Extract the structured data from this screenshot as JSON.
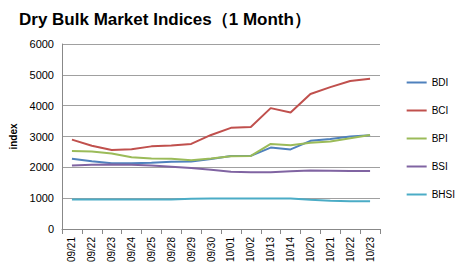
{
  "chart_data": {
    "type": "line",
    "title": "Dry Bulk Market Indices（1 Month）",
    "y_label": "index",
    "categories": [
      "09/21",
      "09/22",
      "09/23",
      "09/24",
      "09/25",
      "09/28",
      "09/29",
      "09/30",
      "10/01",
      "10/02",
      "10/13",
      "10/14",
      "10/20",
      "10/21",
      "10/22",
      "10/23"
    ],
    "series": [
      {
        "name": "BDI",
        "color": "#4f81bd",
        "values": [
          2280,
          2200,
          2130,
          2130,
          2150,
          2180,
          2190,
          2270,
          2370,
          2370,
          2640,
          2580,
          2860,
          2920,
          3000,
          3040
        ]
      },
      {
        "name": "BCI",
        "color": "#c0504d",
        "values": [
          2900,
          2700,
          2560,
          2590,
          2680,
          2710,
          2760,
          3050,
          3280,
          3310,
          3920,
          3780,
          4380,
          4600,
          4800,
          4870
        ]
      },
      {
        "name": "BPI",
        "color": "#9bbb59",
        "values": [
          2530,
          2510,
          2450,
          2330,
          2290,
          2280,
          2230,
          2290,
          2360,
          2370,
          2760,
          2720,
          2800,
          2840,
          2940,
          3050
        ]
      },
      {
        "name": "BSI",
        "color": "#8064a2",
        "values": [
          2060,
          2080,
          2090,
          2080,
          2060,
          2020,
          1980,
          1920,
          1860,
          1840,
          1840,
          1870,
          1900,
          1890,
          1880,
          1880
        ]
      },
      {
        "name": "BHSI",
        "color": "#4bacc6",
        "values": [
          960,
          960,
          960,
          960,
          960,
          960,
          980,
          990,
          990,
          990,
          990,
          990,
          950,
          920,
          900,
          900
        ]
      }
    ],
    "ylim": [
      0,
      6000
    ],
    "yticks": [
      0,
      1000,
      2000,
      3000,
      4000,
      5000,
      6000
    ],
    "grid": true,
    "legend": "right"
  }
}
